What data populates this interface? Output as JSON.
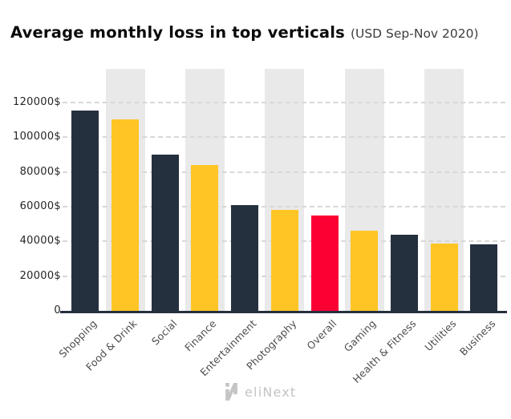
{
  "header": {
    "title": "Average monthly loss in top verticals",
    "subtitle": "(USD Sep-Nov 2020)"
  },
  "footer": {
    "logo_text": "eliNext",
    "logo_icon": "elinext-n-icon"
  },
  "colors": {
    "dark": "#25303f",
    "yellow": "#ffc524",
    "red": "#fb0033",
    "column_bg": "#e9e9e9",
    "gridline": "#d8d8d8",
    "axis": "#25303f",
    "y_label": "#262626",
    "x_label": "#4c4c4c",
    "logo": "#c4c4c4"
  },
  "chart_data": {
    "type": "bar",
    "title": "Average monthly loss in top verticals",
    "subtitle": "(USD Sep-Nov 2020)",
    "unit": "USD",
    "categories": [
      "Shopping",
      "Food & Drink",
      "Social",
      "Finance",
      "Entertainment",
      "Photography",
      "Overall",
      "Gaming",
      "Health & Fitness",
      "Utilities",
      "Business"
    ],
    "values": [
      115500,
      110500,
      90000,
      84000,
      61000,
      58000,
      55000,
      46000,
      44000,
      39000,
      38500
    ],
    "bar_colors": [
      "dark",
      "yellow",
      "dark",
      "yellow",
      "dark",
      "yellow",
      "red",
      "yellow",
      "dark",
      "yellow",
      "dark"
    ],
    "highlight_category": "Overall",
    "xlabel": "",
    "ylabel": "",
    "y_ticks": [
      {
        "label": "120000$",
        "value": 120000
      },
      {
        "label": "100000$",
        "value": 100000
      },
      {
        "label": "80000$",
        "value": 80000
      },
      {
        "label": "60000$",
        "value": 60000
      },
      {
        "label": "40000$",
        "value": 40000
      },
      {
        "label": "20000$",
        "value": 20000
      },
      {
        "label": "0",
        "value": 0
      }
    ],
    "ylim": [
      0,
      140000
    ],
    "grid": "dashed-horizontal",
    "legend": "none",
    "background_columns_behind": [
      "Food & Drink",
      "Finance",
      "Photography",
      "Gaming",
      "Utilities"
    ],
    "x_label_rotation_deg": -45
  }
}
